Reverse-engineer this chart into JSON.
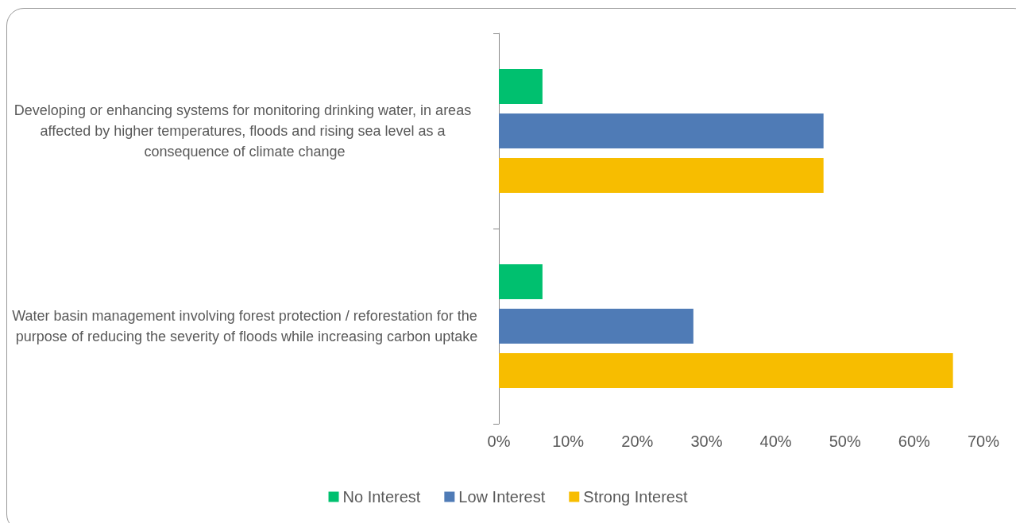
{
  "chart_data": {
    "type": "bar",
    "orientation": "horizontal",
    "categories": [
      "Developing or enhancing systems for monitoring drinking water, in areas affected by higher temperatures, floods and rising sea level as a consequence of climate change",
      "Water basin management involving forest protection / reforestation for the purpose of reducing the severity of floods while increasing carbon uptake"
    ],
    "series": [
      {
        "name": "No Interest",
        "color": "#00c06f",
        "values": [
          6.3,
          6.3
        ]
      },
      {
        "name": "Low Interest",
        "color": "#4f7bb6",
        "values": [
          46.9,
          28.1
        ]
      },
      {
        "name": "Strong Interest",
        "color": "#f7bd00",
        "values": [
          46.9,
          65.6
        ]
      }
    ],
    "xlim": [
      0,
      70
    ],
    "xticks": [
      {
        "value": 0,
        "label": "0%"
      },
      {
        "value": 10,
        "label": "10%"
      },
      {
        "value": 20,
        "label": "20%"
      },
      {
        "value": 30,
        "label": "30%"
      },
      {
        "value": 40,
        "label": "40%"
      },
      {
        "value": 50,
        "label": "50%"
      },
      {
        "value": 60,
        "label": "60%"
      },
      {
        "value": 70,
        "label": "70%"
      }
    ],
    "grid": false,
    "legend": "bottom"
  }
}
